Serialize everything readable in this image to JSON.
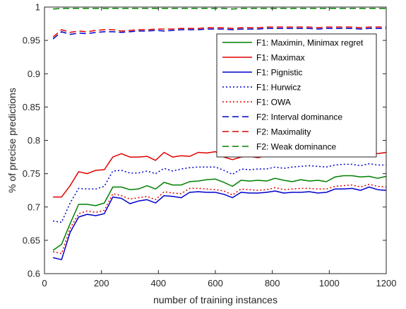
{
  "chart_data": {
    "type": "line",
    "title": "",
    "xlabel": "number of training instances",
    "ylabel": "% of precise predictions",
    "xlim": [
      0,
      1200
    ],
    "ylim": [
      0.6,
      1.0
    ],
    "xticks": [
      "0",
      "200",
      "400",
      "600",
      "800",
      "1000",
      "1200"
    ],
    "yticks": [
      "0.6",
      "0.65",
      "0.7",
      "0.75",
      "0.8",
      "0.85",
      "0.9",
      "0.95",
      "1"
    ],
    "grid": false,
    "legend_position": "upper-right",
    "x": [
      30,
      60,
      90,
      120,
      150,
      180,
      210,
      240,
      270,
      300,
      330,
      360,
      390,
      420,
      450,
      480,
      510,
      540,
      570,
      600,
      630,
      660,
      690,
      720,
      750,
      780,
      810,
      840,
      870,
      900,
      930,
      960,
      990,
      1020,
      1050,
      1080,
      1110,
      1140,
      1170,
      1200
    ],
    "series": [
      {
        "name": "F1: Maximin, Minimax regret",
        "color": "#008000",
        "dash": "solid",
        "values": [
          0.635,
          0.644,
          0.675,
          0.704,
          0.704,
          0.702,
          0.706,
          0.73,
          0.73,
          0.726,
          0.727,
          0.732,
          0.727,
          0.737,
          0.733,
          0.733,
          0.738,
          0.739,
          0.741,
          0.742,
          0.737,
          0.731,
          0.74,
          0.739,
          0.74,
          0.739,
          0.743,
          0.74,
          0.738,
          0.741,
          0.739,
          0.74,
          0.738,
          0.745,
          0.747,
          0.747,
          0.745,
          0.746,
          0.743,
          0.746
        ]
      },
      {
        "name": "F1: Maximax",
        "color": "#e00000",
        "dash": "solid",
        "values": [
          0.715,
          0.715,
          0.732,
          0.753,
          0.75,
          0.755,
          0.756,
          0.775,
          0.78,
          0.775,
          0.775,
          0.776,
          0.77,
          0.782,
          0.775,
          0.777,
          0.776,
          0.782,
          0.781,
          0.783,
          0.775,
          0.771,
          0.775,
          0.776,
          0.774,
          0.777,
          0.779,
          0.78,
          0.777,
          0.776,
          0.779,
          0.779,
          0.778,
          0.78,
          0.782,
          0.784,
          0.781,
          0.784,
          0.78,
          0.782
        ]
      },
      {
        "name": "F1: Pignistic",
        "color": "#0000cc",
        "dash": "solid",
        "values": [
          0.624,
          0.621,
          0.662,
          0.685,
          0.689,
          0.687,
          0.69,
          0.715,
          0.713,
          0.705,
          0.709,
          0.711,
          0.706,
          0.717,
          0.716,
          0.714,
          0.722,
          0.723,
          0.722,
          0.722,
          0.719,
          0.714,
          0.722,
          0.721,
          0.721,
          0.722,
          0.724,
          0.721,
          0.722,
          0.722,
          0.723,
          0.721,
          0.722,
          0.727,
          0.727,
          0.728,
          0.725,
          0.73,
          0.726,
          0.725
        ]
      },
      {
        "name": "F1: Hurwicz",
        "color": "#0000cc",
        "dash": "dotted",
        "values": [
          0.679,
          0.677,
          0.706,
          0.728,
          0.727,
          0.727,
          0.731,
          0.754,
          0.755,
          0.751,
          0.751,
          0.754,
          0.75,
          0.758,
          0.754,
          0.757,
          0.759,
          0.76,
          0.76,
          0.76,
          0.755,
          0.749,
          0.757,
          0.756,
          0.757,
          0.757,
          0.76,
          0.758,
          0.76,
          0.761,
          0.762,
          0.761,
          0.76,
          0.763,
          0.764,
          0.764,
          0.762,
          0.765,
          0.763,
          0.763
        ]
      },
      {
        "name": "F1: OWA",
        "color": "#e00000",
        "dash": "dotted",
        "values": [
          0.633,
          0.63,
          0.668,
          0.69,
          0.694,
          0.692,
          0.695,
          0.72,
          0.717,
          0.712,
          0.714,
          0.716,
          0.711,
          0.723,
          0.721,
          0.72,
          0.728,
          0.728,
          0.727,
          0.726,
          0.724,
          0.718,
          0.727,
          0.726,
          0.725,
          0.726,
          0.729,
          0.726,
          0.727,
          0.728,
          0.728,
          0.727,
          0.727,
          0.731,
          0.732,
          0.733,
          0.73,
          0.734,
          0.731,
          0.73
        ]
      },
      {
        "name": "F2: Interval dominance",
        "color": "#0000cc",
        "dash": "dashed",
        "values": [
          0.952,
          0.963,
          0.959,
          0.961,
          0.96,
          0.962,
          0.963,
          0.963,
          0.962,
          0.963,
          0.964,
          0.964,
          0.965,
          0.964,
          0.965,
          0.966,
          0.966,
          0.966,
          0.967,
          0.967,
          0.967,
          0.966,
          0.967,
          0.967,
          0.967,
          0.968,
          0.968,
          0.968,
          0.968,
          0.968,
          0.968,
          0.967,
          0.968,
          0.968,
          0.968,
          0.968,
          0.967,
          0.968,
          0.968,
          0.968
        ]
      },
      {
        "name": "F2: Maximality",
        "color": "#e00000",
        "dash": "dashed",
        "values": [
          0.955,
          0.966,
          0.962,
          0.964,
          0.963,
          0.965,
          0.966,
          0.966,
          0.964,
          0.965,
          0.966,
          0.966,
          0.967,
          0.967,
          0.967,
          0.968,
          0.968,
          0.968,
          0.969,
          0.969,
          0.969,
          0.968,
          0.969,
          0.969,
          0.969,
          0.97,
          0.97,
          0.97,
          0.97,
          0.97,
          0.97,
          0.969,
          0.97,
          0.97,
          0.97,
          0.97,
          0.969,
          0.97,
          0.97,
          0.97
        ]
      },
      {
        "name": "F2: Weak dominance",
        "color": "#008000",
        "dash": "dashed",
        "values": [
          0.997,
          0.998,
          0.998,
          0.998,
          0.998,
          0.998,
          0.998,
          0.998,
          0.998,
          0.998,
          0.998,
          0.998,
          0.998,
          0.998,
          0.998,
          0.998,
          0.998,
          0.998,
          0.998,
          0.998,
          0.998,
          0.997,
          0.998,
          0.998,
          0.998,
          0.998,
          0.998,
          0.998,
          0.998,
          0.998,
          0.998,
          0.998,
          0.998,
          0.998,
          0.998,
          0.998,
          0.998,
          0.998,
          0.998,
          0.998
        ]
      }
    ]
  }
}
